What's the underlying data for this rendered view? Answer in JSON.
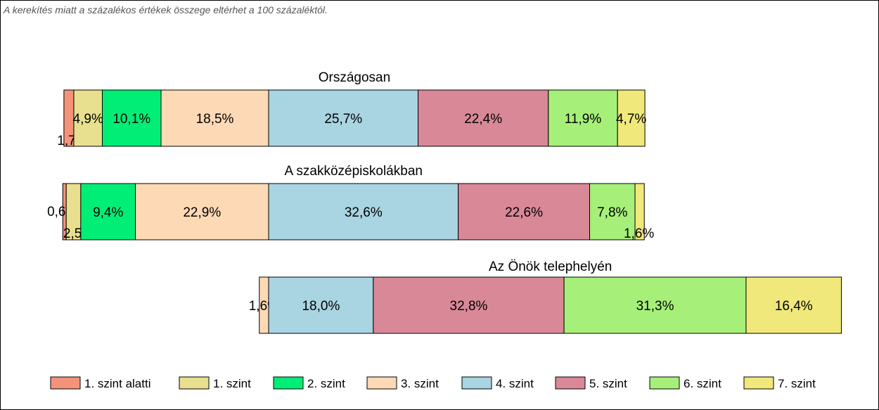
{
  "note": "A kerekítés miatt a  százalékos értékek összege eltérhet a 100 százaléktól.",
  "chart_data": {
    "type": "bar",
    "orientation": "horizontal-stacked",
    "legend_position": "bottom",
    "levels": [
      {
        "name": "1. szint alatti",
        "color": "#f4937a"
      },
      {
        "name": "1. szint",
        "color": "#e8e08e"
      },
      {
        "name": "2. szint",
        "color": "#00ee76"
      },
      {
        "name": "3. szint",
        "color": "#fdd9b5"
      },
      {
        "name": "4. szint",
        "color": "#a9d4e2"
      },
      {
        "name": "5. szint",
        "color": "#d98898"
      },
      {
        "name": "6. szint",
        "color": "#a6f07a"
      },
      {
        "name": "7. szint",
        "color": "#f0e87a"
      }
    ],
    "groups": [
      {
        "title": "Országosan",
        "values": [
          1.7,
          4.9,
          10.1,
          18.5,
          25.7,
          22.4,
          11.9,
          4.7
        ],
        "labels": [
          "1,7%",
          "4,9%",
          "10,1%",
          "18,5%",
          "25,7%",
          "22,4%",
          "11,9%",
          "4,7%"
        ]
      },
      {
        "title": "A szakközépiskolákban",
        "values": [
          0.6,
          2.5,
          9.4,
          22.9,
          32.6,
          22.6,
          7.8,
          1.6
        ],
        "labels": [
          "0,6%",
          "2,5%",
          "9,4%",
          "22,9%",
          "32,6%",
          "22,6%",
          "7,8%",
          "1,6%"
        ]
      },
      {
        "title": "Az Önök telephelyén",
        "values": [
          0,
          0,
          0,
          1.6,
          18.0,
          32.8,
          31.3,
          16.4
        ],
        "labels": [
          "",
          "",
          "",
          "1,6%",
          "18,0%",
          "32,8%",
          "31,3%",
          "16,4%"
        ]
      }
    ]
  }
}
